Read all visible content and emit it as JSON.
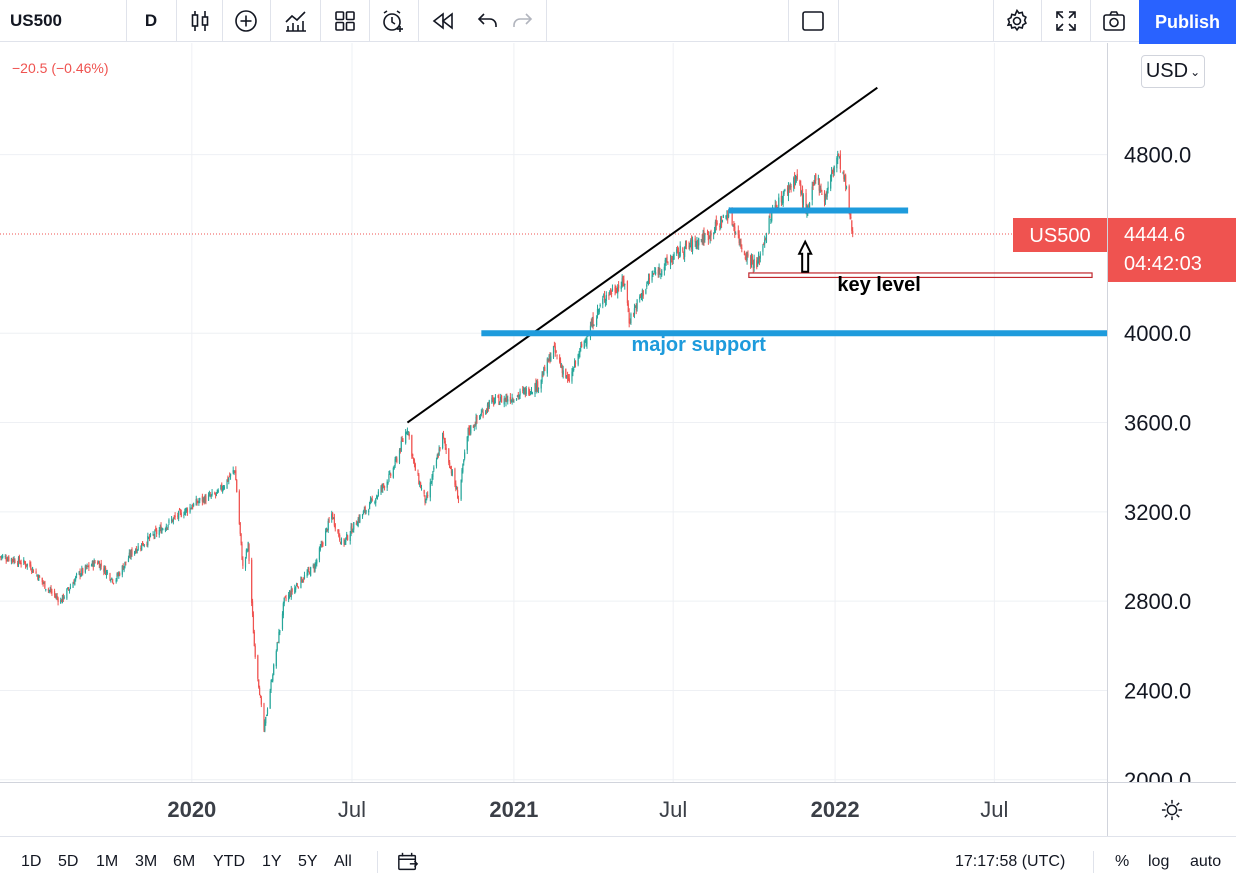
{
  "toolbar": {
    "symbol": "US500",
    "interval": "D",
    "publish_label": "Publish",
    "icons": [
      "candles-icon",
      "add-indicator-icon",
      "indicators-icon",
      "layout-icon",
      "alert-icon",
      "replay-icon",
      "undo-icon",
      "redo-icon",
      "fullscreen-box-icon",
      "settings-icon",
      "fullscreen-icon",
      "camera-icon"
    ]
  },
  "legend": {
    "change": "−20.5 (−0.46%)"
  },
  "currency": "USD",
  "price_tag": {
    "symbol": "US500",
    "price": "4444.6",
    "countdown": "04:42:03",
    "color": "#ef5350"
  },
  "bottom": {
    "ranges": [
      "1D",
      "5D",
      "1M",
      "3M",
      "6M",
      "YTD",
      "1Y",
      "5Y",
      "All"
    ],
    "time": "17:17:58 (UTC)",
    "percent": "%",
    "log": "log",
    "auto": "auto"
  },
  "chart_data": {
    "type": "candlestick",
    "y_axis_ticks": [
      "4800.0",
      "4000.0",
      "3600.0",
      "3200.0",
      "2800.0",
      "2400.0",
      "2000.0"
    ],
    "y_tick_values": [
      4800,
      4000,
      3600,
      3200,
      2800,
      2400,
      2000
    ],
    "ylim": [
      1990,
      5300
    ],
    "x_axis_ticks": [
      {
        "label": "2020",
        "bold": true,
        "date": "2020-01-01"
      },
      {
        "label": "Jul",
        "bold": false,
        "date": "2020-07-01"
      },
      {
        "label": "2021",
        "bold": true,
        "date": "2021-01-01"
      },
      {
        "label": "Jul",
        "bold": false,
        "date": "2021-07-01"
      },
      {
        "label": "2022",
        "bold": true,
        "date": "2022-01-01"
      },
      {
        "label": "Jul",
        "bold": false,
        "date": "2022-07-01"
      }
    ],
    "xlim": [
      "2019-05-28",
      "2022-11-06"
    ],
    "up_color": "#26a69a",
    "down_color": "#ef5350",
    "last_price": 4444.6,
    "price_path": [
      [
        "2019-05-28",
        3000
      ],
      [
        "2019-06-10",
        2990
      ],
      [
        "2019-07-01",
        2960
      ],
      [
        "2019-07-20",
        2860
      ],
      [
        "2019-08-05",
        2800
      ],
      [
        "2019-08-25",
        2920
      ],
      [
        "2019-09-15",
        2980
      ],
      [
        "2019-10-05",
        2890
      ],
      [
        "2019-10-25",
        3020
      ],
      [
        "2019-11-20",
        3100
      ],
      [
        "2019-12-15",
        3180
      ],
      [
        "2020-01-10",
        3250
      ],
      [
        "2020-01-30",
        3280
      ],
      [
        "2020-02-19",
        3390
      ],
      [
        "2020-02-28",
        2950
      ],
      [
        "2020-03-05",
        3050
      ],
      [
        "2020-03-12",
        2600
      ],
      [
        "2020-03-23",
        2220
      ],
      [
        "2020-04-02",
        2480
      ],
      [
        "2020-04-15",
        2800
      ],
      [
        "2020-05-01",
        2880
      ],
      [
        "2020-05-20",
        2960
      ],
      [
        "2020-06-08",
        3190
      ],
      [
        "2020-06-20",
        3050
      ],
      [
        "2020-07-05",
        3150
      ],
      [
        "2020-07-25",
        3250
      ],
      [
        "2020-08-15",
        3370
      ],
      [
        "2020-09-02",
        3580
      ],
      [
        "2020-09-10",
        3400
      ],
      [
        "2020-09-23",
        3240
      ],
      [
        "2020-10-12",
        3540
      ],
      [
        "2020-10-30",
        3260
      ],
      [
        "2020-11-10",
        3560
      ],
      [
        "2020-12-05",
        3690
      ],
      [
        "2021-01-05",
        3720
      ],
      [
        "2021-01-29",
        3770
      ],
      [
        "2021-02-15",
        3930
      ],
      [
        "2021-03-04",
        3780
      ],
      [
        "2021-03-20",
        3950
      ],
      [
        "2021-04-15",
        4170
      ],
      [
        "2021-05-07",
        4230
      ],
      [
        "2021-05-12",
        4060
      ],
      [
        "2021-06-05",
        4250
      ],
      [
        "2021-07-10",
        4370
      ],
      [
        "2021-08-10",
        4440
      ],
      [
        "2021-09-02",
        4540
      ],
      [
        "2021-09-20",
        4360
      ],
      [
        "2021-10-04",
        4300
      ],
      [
        "2021-10-22",
        4550
      ],
      [
        "2021-11-18",
        4700
      ],
      [
        "2021-12-01",
        4530
      ],
      [
        "2021-12-10",
        4710
      ],
      [
        "2021-12-20",
        4600
      ],
      [
        "2022-01-04",
        4800
      ],
      [
        "2022-01-13",
        4660
      ],
      [
        "2022-01-18",
        4520
      ],
      [
        "2022-01-21",
        4444.6
      ]
    ],
    "annotations": [
      {
        "type": "trendline",
        "color": "#000000",
        "from": [
          "2020-09-02",
          3600
        ],
        "to": [
          "2022-02-18",
          5100
        ]
      },
      {
        "type": "hline",
        "color": "#1e9bdc",
        "from": [
          "2021-09-02",
          4550
        ],
        "to": [
          "2022-03-25",
          4550
        ]
      },
      {
        "type": "hline",
        "color": "#1e9bdc",
        "from": [
          "2020-11-25",
          4000
        ],
        "to": [
          "2022-11-06",
          4000
        ]
      },
      {
        "type": "rectangle",
        "color": "#c0262c",
        "from": [
          "2021-09-25",
          4270
        ],
        "to": [
          "2022-10-20",
          4250
        ]
      },
      {
        "type": "arrow-up",
        "color": "#000000",
        "at": [
          "2021-11-28",
          4410
        ]
      }
    ],
    "labels": [
      {
        "text": "key level",
        "color": "#000000",
        "at": [
          "2022-02-20",
          4190
        ]
      },
      {
        "text": "major support",
        "color": "#1e9bdc",
        "at": [
          "2021-07-30",
          3920
        ]
      }
    ]
  }
}
